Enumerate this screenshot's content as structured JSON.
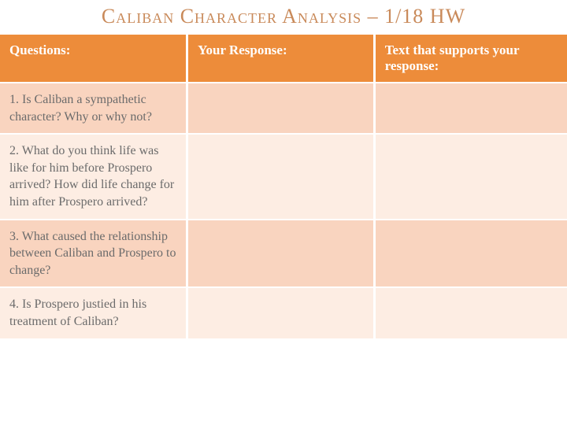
{
  "title": "Caliban Character Analysis – 1/18 HW",
  "columns": [
    "Questions:",
    "Your Response:",
    "Text that supports your response:"
  ],
  "rows": [
    {
      "question": "1. Is Caliban a sympathetic character? Why or why not?",
      "response": "",
      "support": ""
    },
    {
      "question": "2. What do you think life was like for him before Prospero arrived? How did life change for him after Prospero arrived?",
      "response": "",
      "support": ""
    },
    {
      "question": "3. What caused the relationship between Caliban and Prospero to change?",
      "response": "",
      "support": ""
    },
    {
      "question": "4. Is Prospero justied in his treatment of Caliban?",
      "response": "",
      "support": ""
    }
  ],
  "colors": {
    "header_bg": "#ed8c3a",
    "header_text": "#ffffff",
    "row_odd_bg": "#f9d4bf",
    "row_even_bg": "#fdede3",
    "title_color": "#c98a5a",
    "cell_text": "#6b6b6b",
    "border": "#ffffff"
  },
  "title_fontsize": 26,
  "header_fontsize": 17,
  "cell_fontsize": 16
}
